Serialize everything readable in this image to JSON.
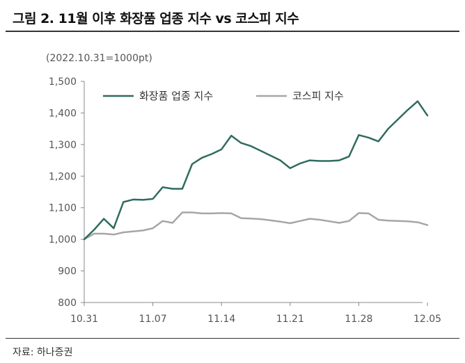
{
  "figure": {
    "title": "그림 2. 11월 이후 화장품 업종 지수 vs 코스피 지수",
    "unit_note": "(2022.10.31=1000pt)",
    "source": "자료: 하나증권"
  },
  "chart_data": {
    "type": "line",
    "title": "그림 2. 11월 이후 화장품 업종 지수 vs 코스피 지수",
    "subtitle": "(2022.10.31=1000pt)",
    "xlabel": "",
    "ylabel": "",
    "x_ticks": [
      "10.31",
      "11.07",
      "11.14",
      "11.21",
      "11.28",
      "12.05"
    ],
    "x_range": [
      0,
      36
    ],
    "y_ticks": [
      "800",
      "900",
      "1,000",
      "1,100",
      "1,200",
      "1,300",
      "1,400",
      "1,500"
    ],
    "y_tick_values": [
      800,
      900,
      1000,
      1100,
      1200,
      1300,
      1400,
      1500
    ],
    "ylim": [
      800,
      1500
    ],
    "grid": false,
    "legend_position": "top",
    "x": [
      0,
      1,
      2,
      3,
      4,
      5,
      6,
      7,
      8,
      9,
      10,
      11,
      12,
      13,
      14,
      15,
      16,
      17,
      18,
      19,
      20,
      21,
      22,
      23,
      24,
      25,
      26,
      27,
      28,
      29,
      30,
      31,
      32,
      33,
      34,
      35
    ],
    "series": [
      {
        "name": "화장품 업종 지수",
        "color": "#2f6b5f",
        "values": [
          1000,
          1030,
          1065,
          1035,
          1118,
          1126,
          1125,
          1128,
          1165,
          1160,
          1160,
          1238,
          1258,
          1270,
          1285,
          1328,
          1305,
          1295,
          1280,
          1265,
          1250,
          1225,
          1240,
          1250,
          1248,
          1248,
          1250,
          1262,
          1330,
          1322,
          1310,
          1350,
          1380,
          1410,
          1437,
          1392
        ]
      },
      {
        "name": "코스피 지수",
        "color": "#a6a6a6",
        "values": [
          1000,
          1018,
          1018,
          1015,
          1022,
          1025,
          1028,
          1035,
          1058,
          1052,
          1085,
          1085,
          1082,
          1082,
          1083,
          1082,
          1067,
          1066,
          1064,
          1060,
          1056,
          1051,
          1058,
          1065,
          1062,
          1057,
          1052,
          1058,
          1083,
          1082,
          1062,
          1059,
          1058,
          1057,
          1054,
          1045
        ]
      }
    ]
  }
}
